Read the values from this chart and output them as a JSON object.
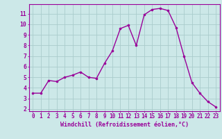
{
  "x": [
    0,
    1,
    2,
    3,
    4,
    5,
    6,
    7,
    8,
    9,
    10,
    11,
    12,
    13,
    14,
    15,
    16,
    17,
    18,
    19,
    20,
    21,
    22,
    23
  ],
  "y": [
    3.5,
    3.5,
    4.7,
    4.6,
    5.0,
    5.2,
    5.5,
    5.0,
    4.9,
    6.3,
    7.5,
    9.6,
    9.9,
    8.0,
    10.9,
    11.4,
    11.5,
    11.3,
    9.7,
    7.0,
    4.5,
    3.5,
    2.7,
    2.2
  ],
  "line_color": "#990099",
  "marker_color": "#990099",
  "bg_color": "#cce8e8",
  "grid_color": "#aacccc",
  "xlabel": "Windchill (Refroidissement éolien,°C)",
  "xlabel_color": "#990099",
  "tick_color": "#990099",
  "ylim": [
    1.8,
    11.9
  ],
  "xlim": [
    -0.5,
    23.5
  ],
  "yticks": [
    2,
    3,
    4,
    5,
    6,
    7,
    8,
    9,
    10,
    11
  ],
  "xticks": [
    0,
    1,
    2,
    3,
    4,
    5,
    6,
    7,
    8,
    9,
    10,
    11,
    12,
    13,
    14,
    15,
    16,
    17,
    18,
    19,
    20,
    21,
    22,
    23
  ],
  "spine_color": "#990099",
  "marker_size": 2.2,
  "line_width": 1.0,
  "tick_fontsize": 5.5,
  "xlabel_fontsize": 6.0
}
